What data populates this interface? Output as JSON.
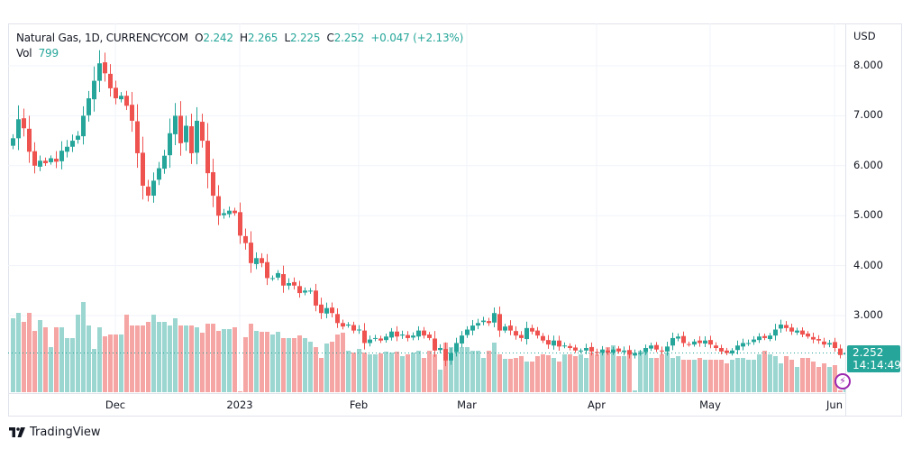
{
  "legend": {
    "symbol": "Natural Gas, 1D, CURRENCYCOM",
    "open_label": "O",
    "open": "2.242",
    "high_label": "H",
    "high": "2.265",
    "low_label": "L",
    "low": "2.225",
    "close_label": "C",
    "close": "2.252",
    "change": "+0.047 (+2.13%)",
    "vol_label": "Vol",
    "vol": "799"
  },
  "price_axis": {
    "currency": "USD",
    "last_price": "2.252",
    "countdown": "14:14:49"
  },
  "brand": {
    "name": "TradingView"
  },
  "colors": {
    "up": "#26a69a",
    "down": "#ef5350",
    "up_vol": "#9cd6d1",
    "down_vol": "#f5a5a3",
    "grid": "#f0f3fa"
  },
  "chart_data": {
    "type": "candlestick",
    "title": "Natural Gas, 1D, CURRENCYCOM",
    "xlabel": "",
    "ylabel": "USD",
    "ylim": [
      1.5,
      8.65
    ],
    "y_ticks": [
      "8.000",
      "7.000",
      "6.000",
      "5.000",
      "4.000",
      "3.000"
    ],
    "y_tick_values": [
      8,
      7,
      6,
      5,
      4,
      3
    ],
    "x_ticks": [
      {
        "label": "Dec",
        "index": 19
      },
      {
        "label": "2023",
        "index": 42
      },
      {
        "label": "Feb",
        "index": 64
      },
      {
        "label": "Mar",
        "index": 84
      },
      {
        "label": "Apr",
        "index": 108
      },
      {
        "label": "May",
        "index": 129
      },
      {
        "label": "Jun",
        "index": 152
      }
    ],
    "grid": true,
    "last_price": 2.252,
    "closes": [
      6.55,
      6.93,
      6.75,
      6.28,
      6.0,
      6.1,
      6.05,
      6.15,
      6.08,
      6.3,
      6.38,
      6.5,
      6.6,
      7.0,
      7.35,
      7.7,
      8.05,
      7.85,
      7.55,
      7.35,
      7.4,
      7.2,
      6.9,
      6.25,
      5.6,
      5.4,
      5.7,
      5.95,
      6.2,
      6.65,
      7.0,
      6.45,
      6.8,
      6.25,
      6.9,
      6.5,
      5.85,
      5.4,
      5.0,
      5.05,
      5.1,
      5.05,
      4.6,
      4.45,
      4.05,
      4.15,
      4.05,
      3.75,
      3.75,
      3.85,
      3.6,
      3.65,
      3.6,
      3.45,
      3.5,
      3.5,
      3.2,
      3.05,
      3.15,
      3.05,
      2.85,
      2.78,
      2.82,
      2.7,
      2.72,
      2.45,
      2.52,
      2.55,
      2.5,
      2.58,
      2.68,
      2.58,
      2.62,
      2.55,
      2.6,
      2.7,
      2.6,
      2.55,
      2.3,
      2.35,
      2.1,
      2.25,
      2.45,
      2.6,
      2.72,
      2.8,
      2.85,
      2.9,
      2.85,
      3.05,
      2.7,
      2.78,
      2.7,
      2.6,
      2.55,
      2.75,
      2.68,
      2.6,
      2.5,
      2.42,
      2.5,
      2.38,
      2.4,
      2.35,
      2.3,
      2.3,
      2.35,
      2.28,
      2.25,
      2.32,
      2.26,
      2.32,
      2.28,
      2.3,
      2.22,
      2.25,
      2.25,
      2.35,
      2.4,
      2.32,
      2.28,
      2.38,
      2.55,
      2.58,
      2.45,
      2.42,
      2.48,
      2.45,
      2.5,
      2.42,
      2.35,
      2.28,
      2.25,
      2.3,
      2.4,
      2.45,
      2.45,
      2.52,
      2.58,
      2.55,
      2.6,
      2.72,
      2.82,
      2.75,
      2.68,
      2.7,
      2.62,
      2.58,
      2.52,
      2.5,
      2.42,
      2.45,
      2.35,
      2.21,
      2.252
    ],
    "volumes": [
      0.82,
      0.88,
      0.78,
      0.88,
      0.68,
      0.8,
      0.72,
      0.5,
      0.72,
      0.72,
      0.6,
      0.6,
      0.86,
      1.0,
      0.74,
      0.48,
      0.72,
      0.62,
      0.64,
      0.64,
      0.64,
      0.86,
      0.74,
      0.74,
      0.74,
      0.78,
      0.86,
      0.78,
      0.78,
      0.74,
      0.82,
      0.74,
      0.74,
      0.74,
      0.72,
      0.66,
      0.76,
      0.76,
      0.68,
      0.7,
      0.7,
      0.72,
      0.01,
      0.61,
      0.76,
      0.68,
      0.67,
      0.67,
      0.64,
      0.67,
      0.6,
      0.6,
      0.6,
      0.63,
      0.6,
      0.56,
      0.5,
      0.38,
      0.54,
      0.56,
      0.64,
      0.66,
      0.46,
      0.44,
      0.48,
      0.44,
      0.42,
      0.42,
      0.43,
      0.45,
      0.44,
      0.45,
      0.4,
      0.42,
      0.44,
      0.46,
      0.38,
      0.46,
      0.42,
      0.25,
      0.55,
      0.5,
      0.5,
      0.5,
      0.5,
      0.46,
      0.46,
      0.38,
      0.46,
      0.55,
      0.42,
      0.37,
      0.37,
      0.38,
      0.4,
      0.34,
      0.34,
      0.4,
      0.42,
      0.41,
      0.38,
      0.34,
      0.42,
      0.42,
      0.4,
      0.42,
      0.38,
      0.44,
      0.42,
      0.44,
      0.5,
      0.52,
      0.4,
      0.4,
      0.44,
      0.02,
      0.46,
      0.46,
      0.38,
      0.38,
      0.42,
      0.44,
      0.38,
      0.4,
      0.36,
      0.36,
      0.36,
      0.38,
      0.36,
      0.36,
      0.36,
      0.36,
      0.32,
      0.36,
      0.38,
      0.38,
      0.36,
      0.36,
      0.42,
      0.46,
      0.42,
      0.4,
      0.32,
      0.4,
      0.36,
      0.28,
      0.38,
      0.38,
      0.34,
      0.28,
      0.32,
      0.28,
      0.3,
      0.02,
      0.12
    ]
  }
}
